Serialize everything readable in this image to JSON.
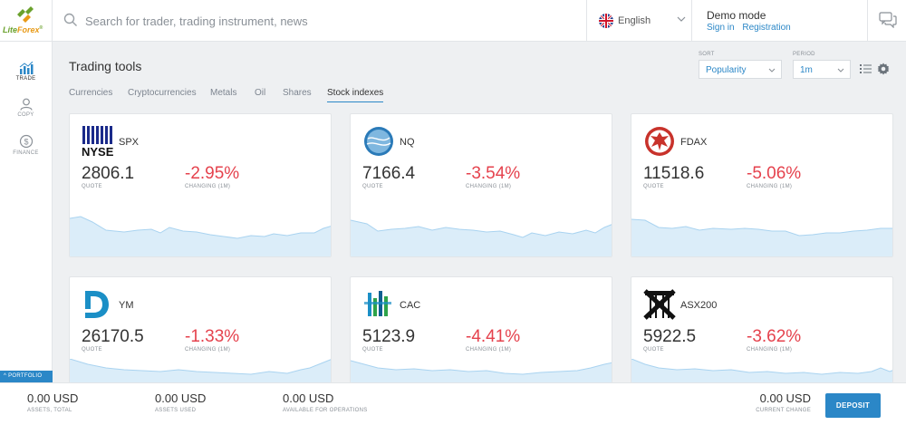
{
  "header": {
    "brand": {
      "name_part1": "Lite",
      "name_part2": "Forex",
      "mark": "®"
    },
    "search": {
      "placeholder": "Search for trader, trading instrument, news",
      "value": "",
      "icon": "search-icon"
    },
    "language": {
      "label": "English",
      "flag": "uk-flag-icon"
    },
    "account": {
      "mode": "Demo mode",
      "sign_in": "Sign in",
      "registration": "Registration"
    },
    "chat_icon": "chat-icon"
  },
  "sidebar": {
    "items": [
      {
        "label": "TRADE",
        "icon": "chart-icon",
        "active": true
      },
      {
        "label": "COPY",
        "icon": "user-icon",
        "active": false
      },
      {
        "label": "FINANCE",
        "icon": "dollar-icon",
        "active": false
      }
    ],
    "portfolio_label": "PORTFOLIO"
  },
  "main": {
    "title": "Trading tools",
    "tabs": [
      {
        "label": "Currencies",
        "active": false
      },
      {
        "label": "Cryptocurrencies",
        "active": false
      },
      {
        "label": "Metals",
        "active": false
      },
      {
        "label": "Oil",
        "active": false
      },
      {
        "label": "Shares",
        "active": false
      },
      {
        "label": "Stock indexes",
        "active": true
      }
    ],
    "sort": {
      "label": "SORT",
      "value": "Popularity"
    },
    "period": {
      "label": "PERIOD",
      "value": "1m"
    },
    "view_icon": "list-view-icon",
    "settings_icon": "gear-icon"
  },
  "instruments": [
    {
      "symbol": "SPX",
      "logo": "NYSE",
      "quote": "2806.1",
      "quote_label": "QUOTE",
      "change": "-2.95%",
      "change_label": "CHANGING (1M)"
    },
    {
      "symbol": "NQ",
      "logo": "nasdaq-globe",
      "quote": "7166.4",
      "quote_label": "QUOTE",
      "change": "-3.54%",
      "change_label": "CHANGING (1M)"
    },
    {
      "symbol": "FDAX",
      "logo": "frankfurt-eagle",
      "quote": "11518.6",
      "quote_label": "QUOTE",
      "change": "-5.06%",
      "change_label": "CHANGING (1M)"
    },
    {
      "symbol": "YM",
      "logo": "dow-jones",
      "quote": "26170.5",
      "quote_label": "QUOTE",
      "change": "-1.33%",
      "change_label": "CHANGING (1M)"
    },
    {
      "symbol": "CAC",
      "logo": "euronext",
      "quote": "5123.9",
      "quote_label": "QUOTE",
      "change": "-4.41%",
      "change_label": "CHANGING (1M)"
    },
    {
      "symbol": "ASX200",
      "logo": "asx",
      "quote": "5922.5",
      "quote_label": "QUOTE",
      "change": "-3.62%",
      "change_label": "CHANGING (1M)"
    }
  ],
  "footer": {
    "assets_total": {
      "value": "0.00 USD",
      "label": "ASSETS, TOTAL"
    },
    "assets_used": {
      "value": "0.00 USD",
      "label": "ASSETS USED"
    },
    "available": {
      "value": "0.00 USD",
      "label": "AVAILABLE FOR OPERATIONS"
    },
    "current_change": {
      "value": "0.00 USD",
      "label": "CURRENT CHANGE"
    },
    "deposit_label": "DEPOSIT"
  },
  "colors": {
    "accent": "#2b87c7",
    "negative": "#e5424d",
    "sparkline_fill": "#dbedf9",
    "sparkline_line": "#a9d3f0"
  }
}
